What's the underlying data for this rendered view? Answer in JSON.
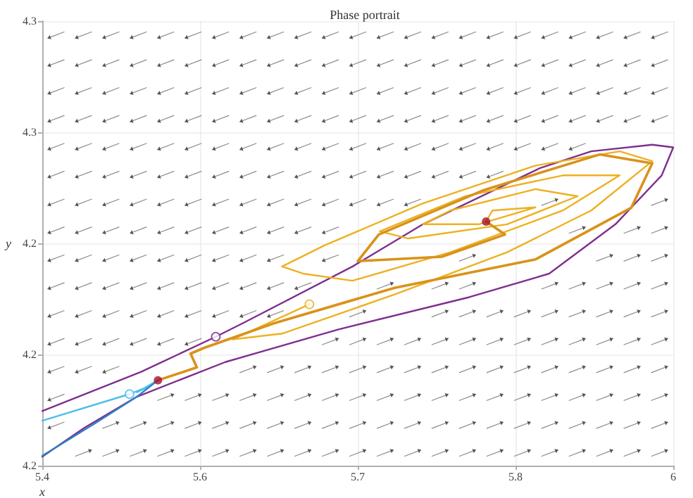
{
  "chart_data": {
    "type": "line",
    "title": "Phase portrait",
    "xlabel": "x",
    "ylabel": "y",
    "xlim": [
      5.4,
      6
    ],
    "xticks": [
      5.4,
      {
        "value": 5.55,
        "label": "5.6"
      },
      5.7,
      {
        "value": 5.85,
        "label": "5.8"
      },
      6
    ],
    "ylim": [
      4.2,
      4.3
    ],
    "yticks": [
      4.2,
      {
        "value": 4.225,
        "label": "4.2"
      },
      {
        "value": 4.25,
        "label": "4.2"
      },
      {
        "value": 4.275,
        "label": "4.3"
      },
      4.3
    ],
    "grid": true,
    "marker": "none",
    "line_style": "solid",
    "series": [
      {
        "color": "#7e2f8e",
        "x": [
          5.4,
          5.44,
          5.49,
          5.574,
          5.681,
          5.806,
          5.882,
          5.945,
          5.989,
          6.0,
          5.98,
          5.922,
          5.873,
          5.762,
          5.695,
          5.592,
          5.565,
          5.494,
          5.4
        ],
        "values": [
          4.202,
          4.2085,
          4.2155,
          4.2233,
          4.2306,
          4.2379,
          4.2432,
          4.2543,
          4.2653,
          4.2716,
          4.2722,
          4.2707,
          4.2669,
          4.2543,
          4.2448,
          4.2322,
          4.229,
          4.2211,
          4.2123
        ]
      },
      {
        "color": "#edb120",
        "x": [
          5.654,
          5.581,
          5.628,
          5.735,
          5.842,
          5.922,
          5.98,
          5.949,
          5.869,
          5.762,
          5.668,
          5.628,
          5.648,
          5.695,
          5.788,
          5.895,
          5.949,
          5.895,
          5.802,
          5.721,
          5.748,
          5.842,
          5.909,
          5.869,
          5.788,
          5.762,
          5.815,
          5.869,
          5.828,
          5.822
        ],
        "values": [
          4.2363,
          4.2284,
          4.2297,
          4.2385,
          4.248,
          4.2574,
          4.2685,
          4.2707,
          4.2675,
          4.259,
          4.2495,
          4.2448,
          4.2432,
          4.2416,
          4.248,
          4.2574,
          4.2653,
          4.2653,
          4.2606,
          4.2527,
          4.2511,
          4.2543,
          4.2606,
          4.2622,
          4.2574,
          4.2543,
          4.2543,
          4.2581,
          4.2574,
          4.2549
        ]
      },
      {
        "color": "#d9921a",
        "x": [
          5.51,
          5.547,
          5.541,
          5.554,
          5.62,
          5.735,
          5.869,
          5.96,
          5.98,
          5.93,
          5.82,
          5.72,
          5.7,
          5.78,
          5.84,
          5.822
        ],
        "values": [
          4.2192,
          4.2221,
          4.2252,
          4.2265,
          4.232,
          4.24,
          4.2464,
          4.258,
          4.268,
          4.27,
          4.262,
          4.252,
          4.246,
          4.247,
          4.252,
          4.2549
        ]
      },
      {
        "color": "#4dbeee",
        "x": [
          5.4,
          5.483,
          5.5,
          5.49,
          5.51
        ],
        "values": [
          4.2101,
          4.2161,
          4.2177,
          4.2165,
          4.2192
        ]
      },
      {
        "color": "#2f7fc8",
        "x": [
          5.4,
          5.45,
          5.49,
          5.51
        ],
        "values": [
          4.2022,
          4.2095,
          4.2155,
          4.2192
        ]
      },
      {
        "type": "scatter",
        "marker": "circle",
        "x": [
          5.565,
          5.483,
          5.654
        ],
        "values": [
          4.229,
          4.2161,
          4.2363
        ],
        "colors": [
          "#7e2f8e",
          "#4dbeee",
          "#edb120"
        ]
      },
      {
        "type": "scatter",
        "marker": "circle",
        "color": "#a2142f",
        "x": [
          5.51,
          5.822
        ],
        "values": [
          4.2192,
          4.2549
        ]
      }
    ]
  }
}
